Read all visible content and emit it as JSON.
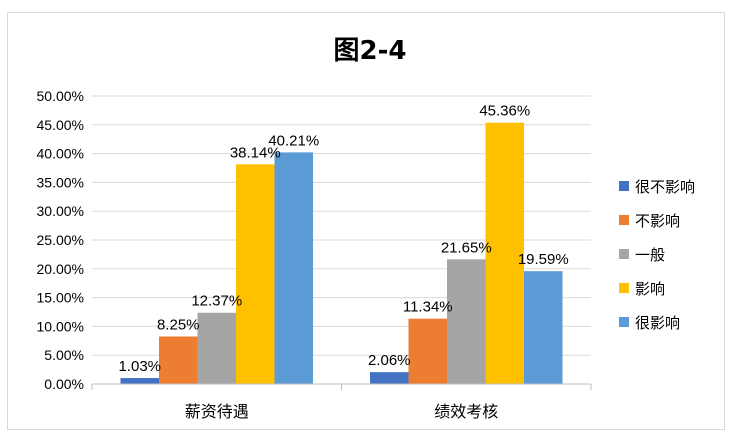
{
  "chart_data": {
    "type": "bar",
    "title": "图2-4",
    "categories": [
      "薪资待遇",
      "绩效考核"
    ],
    "series": [
      {
        "name": "很不影响",
        "color": "#4472C4",
        "values": [
          1.03,
          2.06
        ],
        "labels": [
          "1.03%",
          "2.06%"
        ]
      },
      {
        "name": "不影响",
        "color": "#ED7D31",
        "values": [
          8.25,
          11.34
        ],
        "labels": [
          "8.25%",
          "11.34%"
        ]
      },
      {
        "name": "一般",
        "color": "#A5A5A5",
        "values": [
          12.37,
          21.65
        ],
        "labels": [
          "12.37%",
          "21.65%"
        ]
      },
      {
        "name": "影响",
        "color": "#FFC000",
        "values": [
          38.14,
          45.36
        ],
        "labels": [
          "38.14%",
          "45.36%"
        ]
      },
      {
        "name": "很影响",
        "color": "#5B9BD5",
        "values": [
          40.21,
          19.59
        ],
        "labels": [
          "40.21%",
          "19.59%"
        ]
      }
    ],
    "ylim": [
      0,
      50
    ],
    "yticks": [
      0,
      5,
      10,
      15,
      20,
      25,
      30,
      35,
      40,
      45,
      50
    ],
    "ytick_labels": [
      "0.00%",
      "5.00%",
      "10.00%",
      "15.00%",
      "20.00%",
      "25.00%",
      "30.00%",
      "35.00%",
      "40.00%",
      "45.00%",
      "50.00%"
    ],
    "grid": true,
    "legend": "right",
    "xlabel": "",
    "ylabel": ""
  }
}
